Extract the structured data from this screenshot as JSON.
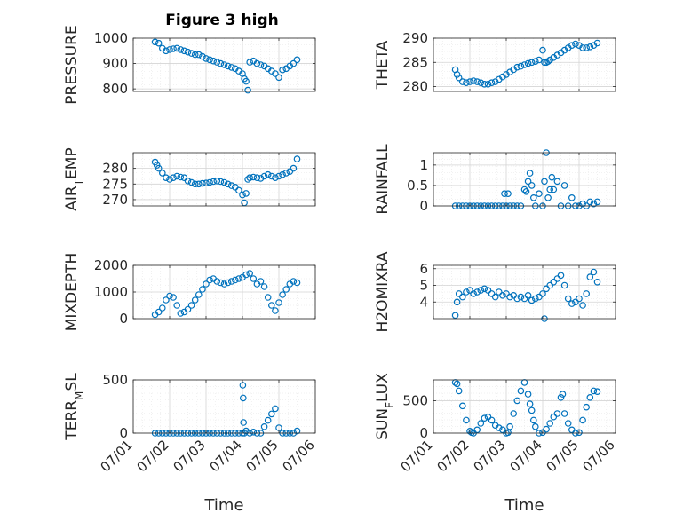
{
  "figure": {
    "title": "Figure 3 high",
    "xlabel": "Time",
    "marker_color": "#0072BD"
  },
  "chart_data": [
    {
      "type": "scatter",
      "ylabel": "PRESSURE",
      "x_ticks": [
        "07/01",
        "07/02",
        "07/03",
        "07/04",
        "07/05",
        "07/06"
      ],
      "xlim": [
        "07/01",
        "07/06"
      ],
      "ylim": [
        790,
        1000
      ],
      "y_ticks": [
        800,
        900,
        1000
      ],
      "grid": true,
      "series": [
        {
          "x": [
            0.6,
            0.7,
            0.8,
            0.9,
            1.0,
            1.1,
            1.2,
            1.3,
            1.4,
            1.5,
            1.6,
            1.7,
            1.8,
            1.9,
            2.0,
            2.1,
            2.2,
            2.3,
            2.4,
            2.5,
            2.6,
            2.7,
            2.8,
            2.9,
            3.0,
            3.05,
            3.1,
            3.15,
            3.2,
            3.3,
            3.4,
            3.5,
            3.6,
            3.7,
            3.8,
            3.9,
            4.0,
            4.1,
            4.2,
            4.3,
            4.4,
            4.5
          ],
          "y": [
            985,
            980,
            960,
            950,
            955,
            958,
            960,
            955,
            950,
            945,
            940,
            935,
            935,
            928,
            920,
            915,
            910,
            905,
            900,
            895,
            890,
            885,
            880,
            870,
            860,
            840,
            830,
            795,
            905,
            910,
            900,
            895,
            890,
            880,
            870,
            860,
            845,
            875,
            880,
            890,
            900,
            915
          ]
        }
      ]
    },
    {
      "type": "scatter",
      "ylabel": "THETA",
      "x_ticks": [
        "07/01",
        "07/02",
        "07/03",
        "07/04",
        "07/05",
        "07/06"
      ],
      "xlim": [
        "07/01",
        "07/06"
      ],
      "ylim": [
        279,
        290
      ],
      "y_ticks": [
        280,
        285,
        290
      ],
      "grid": true,
      "series": [
        {
          "x": [
            0.6,
            0.65,
            0.7,
            0.8,
            0.9,
            1.0,
            1.1,
            1.2,
            1.3,
            1.4,
            1.5,
            1.6,
            1.7,
            1.8,
            1.9,
            2.0,
            2.1,
            2.2,
            2.3,
            2.4,
            2.5,
            2.6,
            2.7,
            2.8,
            2.9,
            3.0,
            3.05,
            3.1,
            3.15,
            3.2,
            3.3,
            3.4,
            3.5,
            3.6,
            3.7,
            3.8,
            3.9,
            4.0,
            4.1,
            4.2,
            4.3,
            4.4,
            4.5
          ],
          "y": [
            283.5,
            282.5,
            281.8,
            281.0,
            280.8,
            281.0,
            281.2,
            281.0,
            280.8,
            280.5,
            280.5,
            280.8,
            281.0,
            281.5,
            282.0,
            282.5,
            283.0,
            283.5,
            284.0,
            284.2,
            284.5,
            284.8,
            285.0,
            285.2,
            285.5,
            287.5,
            285.0,
            285.0,
            285.2,
            285.5,
            286.0,
            286.5,
            287.0,
            287.5,
            288.0,
            288.5,
            288.8,
            288.5,
            288.0,
            288.0,
            288.2,
            288.5,
            289.0
          ]
        }
      ]
    },
    {
      "type": "scatter",
      "ylabel": "AIR",
      "ylabel_sub": "T",
      "ylabel_tail": "EMP",
      "x_ticks": [
        "07/01",
        "07/02",
        "07/03",
        "07/04",
        "07/05",
        "07/06"
      ],
      "xlim": [
        "07/01",
        "07/06"
      ],
      "ylim": [
        268,
        285
      ],
      "y_ticks": [
        270,
        275,
        280
      ],
      "grid": true,
      "series": [
        {
          "x": [
            0.6,
            0.65,
            0.7,
            0.8,
            0.9,
            1.0,
            1.1,
            1.2,
            1.3,
            1.4,
            1.5,
            1.6,
            1.7,
            1.8,
            1.9,
            2.0,
            2.1,
            2.2,
            2.3,
            2.4,
            2.5,
            2.6,
            2.7,
            2.8,
            2.9,
            3.0,
            3.05,
            3.1,
            3.15,
            3.2,
            3.3,
            3.4,
            3.5,
            3.6,
            3.7,
            3.8,
            3.9,
            4.0,
            4.1,
            4.2,
            4.3,
            4.4,
            4.5
          ],
          "y": [
            282.0,
            281.0,
            280.0,
            278.5,
            277.0,
            276.5,
            277.0,
            277.5,
            277.2,
            277.0,
            276.0,
            275.5,
            275.0,
            275.0,
            275.2,
            275.3,
            275.5,
            275.8,
            276.0,
            275.8,
            275.5,
            275.0,
            274.5,
            274.0,
            273.0,
            271.5,
            269.0,
            272.0,
            276.5,
            277.0,
            277.2,
            277.0,
            276.8,
            277.5,
            278.0,
            277.5,
            277.0,
            277.5,
            278.0,
            278.5,
            279.0,
            280.0,
            283.0
          ]
        }
      ]
    },
    {
      "type": "scatter",
      "ylabel": "RAINFALL",
      "x_ticks": [
        "07/01",
        "07/02",
        "07/03",
        "07/04",
        "07/05",
        "07/06"
      ],
      "xlim": [
        "07/01",
        "07/06"
      ],
      "ylim": [
        0,
        1.3
      ],
      "y_ticks": [
        0,
        0.5,
        1
      ],
      "y_tick_labels": [
        "0",
        "0.5",
        "1"
      ],
      "grid": true,
      "series": [
        {
          "x": [
            0.6,
            0.7,
            0.8,
            0.9,
            1.0,
            1.1,
            1.2,
            1.3,
            1.4,
            1.5,
            1.6,
            1.7,
            1.8,
            1.9,
            1.95,
            2.0,
            2.05,
            2.1,
            2.2,
            2.3,
            2.4,
            2.5,
            2.55,
            2.6,
            2.65,
            2.7,
            2.75,
            2.8,
            2.9,
            3.0,
            3.05,
            3.1,
            3.15,
            3.2,
            3.25,
            3.3,
            3.4,
            3.5,
            3.6,
            3.7,
            3.8,
            3.9,
            4.0,
            4.1,
            4.2,
            4.3,
            4.4,
            4.5
          ],
          "y": [
            0,
            0,
            0,
            0,
            0,
            0,
            0,
            0,
            0,
            0,
            0,
            0,
            0,
            0,
            0.3,
            0,
            0.3,
            0,
            0,
            0,
            0,
            0.4,
            0.35,
            0.6,
            0.8,
            0.5,
            0.2,
            0,
            0.3,
            0,
            0.6,
            1.3,
            0.2,
            0.4,
            0.7,
            0.4,
            0.6,
            0,
            0.5,
            0,
            0.2,
            0,
            0,
            0.05,
            0,
            0.1,
            0.05,
            0.1
          ]
        }
      ]
    },
    {
      "type": "scatter",
      "ylabel": "MIXDEPTH",
      "x_ticks": [
        "07/01",
        "07/02",
        "07/03",
        "07/04",
        "07/05",
        "07/06"
      ],
      "xlim": [
        "07/01",
        "07/06"
      ],
      "ylim": [
        0,
        2000
      ],
      "y_ticks": [
        0,
        1000,
        2000
      ],
      "grid": true,
      "series": [
        {
          "x": [
            0.6,
            0.7,
            0.8,
            0.9,
            1.0,
            1.1,
            1.2,
            1.3,
            1.4,
            1.5,
            1.6,
            1.7,
            1.8,
            1.9,
            2.0,
            2.1,
            2.2,
            2.3,
            2.4,
            2.5,
            2.6,
            2.7,
            2.8,
            2.9,
            3.0,
            3.1,
            3.2,
            3.3,
            3.4,
            3.5,
            3.6,
            3.7,
            3.8,
            3.9,
            4.0,
            4.1,
            4.2,
            4.3,
            4.4,
            4.5
          ],
          "y": [
            150,
            250,
            400,
            700,
            850,
            800,
            500,
            200,
            250,
            350,
            500,
            700,
            900,
            1100,
            1300,
            1450,
            1500,
            1400,
            1350,
            1300,
            1350,
            1400,
            1450,
            1500,
            1550,
            1650,
            1700,
            1500,
            1300,
            1400,
            1200,
            800,
            500,
            300,
            600,
            900,
            1100,
            1300,
            1400,
            1350
          ]
        }
      ]
    },
    {
      "type": "scatter",
      "ylabel": "H2OMIXRA",
      "x_ticks": [
        "07/01",
        "07/02",
        "07/03",
        "07/04",
        "07/05",
        "07/06"
      ],
      "xlim": [
        "07/01",
        "07/06"
      ],
      "ylim": [
        3,
        6.2
      ],
      "y_ticks": [
        4,
        5,
        6
      ],
      "grid": true,
      "series": [
        {
          "x": [
            0.6,
            0.65,
            0.7,
            0.8,
            0.9,
            1.0,
            1.1,
            1.2,
            1.3,
            1.4,
            1.5,
            1.6,
            1.7,
            1.8,
            1.9,
            2.0,
            2.1,
            2.2,
            2.3,
            2.4,
            2.5,
            2.6,
            2.7,
            2.8,
            2.9,
            3.0,
            3.05,
            3.1,
            3.2,
            3.3,
            3.4,
            3.5,
            3.6,
            3.7,
            3.8,
            3.9,
            4.0,
            4.1,
            4.2,
            4.3,
            4.4,
            4.5
          ],
          "y": [
            3.2,
            4.0,
            4.5,
            4.3,
            4.6,
            4.7,
            4.5,
            4.6,
            4.7,
            4.8,
            4.7,
            4.5,
            4.3,
            4.6,
            4.4,
            4.5,
            4.3,
            4.4,
            4.2,
            4.3,
            4.2,
            4.4,
            4.1,
            4.2,
            4.3,
            4.5,
            3.0,
            4.8,
            5.0,
            5.2,
            5.4,
            5.6,
            5.0,
            4.2,
            3.9,
            4.0,
            4.2,
            3.8,
            4.5,
            5.5,
            5.8,
            5.2
          ]
        }
      ]
    },
    {
      "type": "scatter",
      "ylabel": "TERR",
      "ylabel_sub": "M",
      "ylabel_tail": "SL",
      "x_ticks": [
        "07/01",
        "07/02",
        "07/03",
        "07/04",
        "07/05",
        "07/06"
      ],
      "xlim": [
        "07/01",
        "07/06"
      ],
      "ylim": [
        0,
        500
      ],
      "y_ticks": [
        0,
        500
      ],
      "grid": true,
      "series": [
        {
          "x": [
            0.6,
            0.7,
            0.8,
            0.9,
            1.0,
            1.1,
            1.2,
            1.3,
            1.4,
            1.5,
            1.6,
            1.7,
            1.8,
            1.9,
            2.0,
            2.1,
            2.2,
            2.3,
            2.4,
            2.5,
            2.6,
            2.7,
            2.8,
            2.9,
            3.0,
            3.01,
            3.02,
            3.03,
            3.05,
            3.1,
            3.2,
            3.3,
            3.4,
            3.5,
            3.6,
            3.7,
            3.8,
            3.9,
            4.0,
            4.1,
            4.2,
            4.3,
            4.4,
            4.5
          ],
          "y": [
            0,
            0,
            0,
            0,
            0,
            0,
            0,
            0,
            0,
            0,
            0,
            0,
            0,
            0,
            0,
            0,
            0,
            0,
            0,
            0,
            0,
            0,
            0,
            0,
            0,
            450,
            330,
            100,
            0,
            20,
            0,
            10,
            0,
            0,
            60,
            120,
            180,
            230,
            50,
            0,
            0,
            0,
            0,
            20
          ]
        }
      ]
    },
    {
      "type": "scatter",
      "ylabel": "SUN",
      "ylabel_sub": "F",
      "ylabel_tail": "LUX",
      "x_ticks": [
        "07/01",
        "07/02",
        "07/03",
        "07/04",
        "07/05",
        "07/06"
      ],
      "xlim": [
        "07/01",
        "07/06"
      ],
      "ylim": [
        0,
        820
      ],
      "y_ticks": [
        0,
        500
      ],
      "grid": true,
      "series": [
        {
          "x": [
            0.6,
            0.65,
            0.7,
            0.8,
            0.9,
            1.0,
            1.05,
            1.1,
            1.2,
            1.3,
            1.4,
            1.5,
            1.6,
            1.7,
            1.8,
            1.9,
            2.0,
            2.05,
            2.1,
            2.2,
            2.3,
            2.4,
            2.5,
            2.6,
            2.65,
            2.7,
            2.75,
            2.8,
            2.9,
            3.0,
            3.1,
            3.2,
            3.3,
            3.4,
            3.5,
            3.55,
            3.6,
            3.7,
            3.8,
            3.9,
            4.0,
            4.1,
            4.2,
            4.3,
            4.4,
            4.5
          ],
          "y": [
            780,
            760,
            650,
            420,
            200,
            30,
            10,
            0,
            50,
            150,
            230,
            250,
            200,
            120,
            80,
            50,
            0,
            10,
            100,
            300,
            500,
            650,
            780,
            600,
            450,
            350,
            200,
            100,
            0,
            10,
            60,
            150,
            250,
            300,
            550,
            600,
            300,
            150,
            50,
            0,
            10,
            200,
            400,
            550,
            650,
            640
          ]
        }
      ]
    }
  ]
}
